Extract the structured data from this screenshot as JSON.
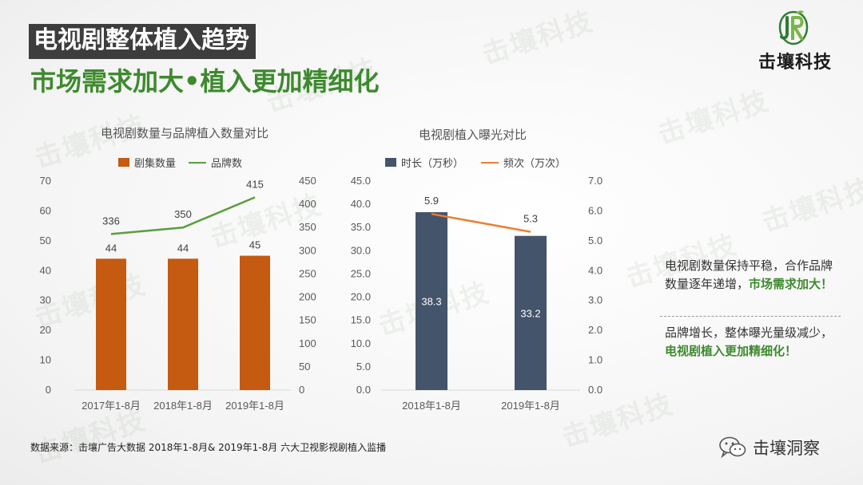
{
  "header": {
    "title": "电视剧整体植入趋势",
    "subtitle": "市场需求加大•植入更加精细化"
  },
  "logo": {
    "text": "击壤科技",
    "icon": "jr-leaf-logo"
  },
  "watermark": "击壤科技",
  "chart_data": [
    {
      "type": "bar",
      "title": "电视剧数量与品牌植入数量对比",
      "categories": [
        "2017年1-8月",
        "2018年1-8月",
        "2019年1-8月"
      ],
      "series": [
        {
          "name": "剧集数量",
          "kind": "bar",
          "axis": "left",
          "values": [
            44,
            44,
            45
          ],
          "color": "#c55a11"
        },
        {
          "name": "品牌数",
          "kind": "line",
          "axis": "right",
          "values": [
            336,
            350,
            415
          ],
          "color": "#5a9e3c"
        }
      ],
      "y_left": {
        "ylim": [
          0,
          70
        ],
        "ticks": [
          "0",
          "10",
          "20",
          "30",
          "40",
          "50",
          "60",
          "70"
        ]
      },
      "y_right": {
        "ylim": [
          0,
          450
        ],
        "ticks": [
          "0",
          "50",
          "100",
          "150",
          "200",
          "250",
          "300",
          "350",
          "400",
          "450"
        ]
      },
      "legend": "top"
    },
    {
      "type": "bar",
      "title": "电视剧植入曝光对比",
      "categories": [
        "2018年1-8月",
        "2019年1-8月"
      ],
      "series": [
        {
          "name": "时长（万秒）",
          "kind": "bar",
          "axis": "left",
          "values": [
            38.3,
            33.2
          ],
          "color": "#44546a"
        },
        {
          "name": "频次（万次）",
          "kind": "line",
          "axis": "right",
          "values": [
            5.9,
            5.3
          ],
          "color": "#ed7d31"
        }
      ],
      "y_left": {
        "ylim": [
          0,
          45
        ],
        "ticks": [
          "0.0",
          "5.0",
          "10.0",
          "15.0",
          "20.0",
          "25.0",
          "30.0",
          "35.0",
          "40.0",
          "45.0"
        ]
      },
      "y_right": {
        "ylim": [
          0,
          7
        ],
        "ticks": [
          "0.0",
          "1.0",
          "2.0",
          "3.0",
          "4.0",
          "5.0",
          "6.0",
          "7.0"
        ]
      },
      "legend": "top"
    }
  ],
  "notes": [
    {
      "text": "电视剧数量保持平稳，合作品牌数量逐年递增，",
      "highlight": "市场需求加大！"
    },
    {
      "text": "品牌增长，整体曝光量级减少，",
      "highlight": "电视剧植入更加精细化！"
    }
  ],
  "source": "数据来源：击壤广告大数据 2018年1-8月& 2019年1-8月 六大卫视影视剧植入监播",
  "wechat": {
    "label": "击壤洞察",
    "icon": "wechat-icon"
  },
  "colors": {
    "title_bg": "#3d3d3d",
    "accent_green": "#3d8a2e"
  }
}
